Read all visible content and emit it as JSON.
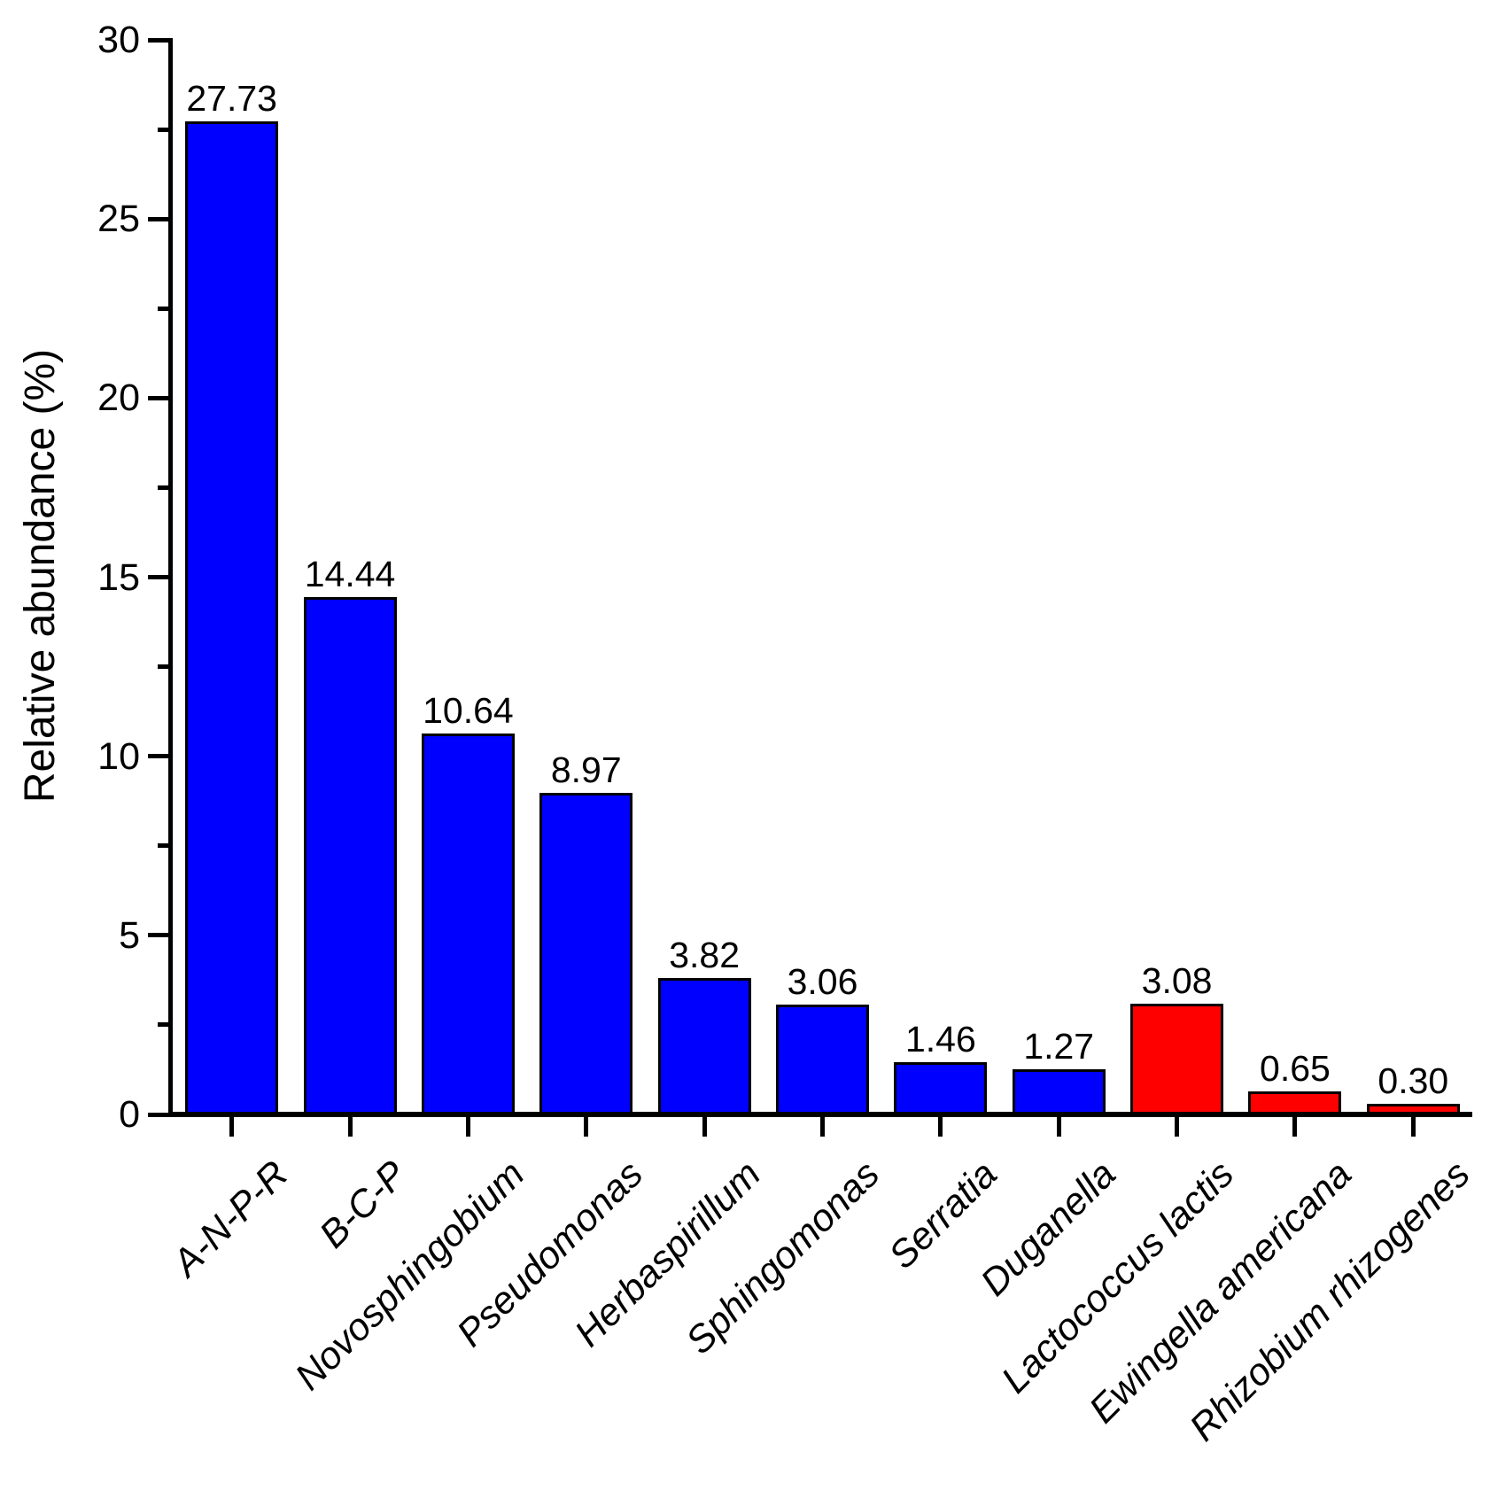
{
  "chart_data": {
    "type": "bar",
    "title": "",
    "xlabel": "",
    "ylabel": "Relative abundance (%)",
    "ylim": [
      0,
      30
    ],
    "yticks": [
      0,
      5,
      10,
      15,
      20,
      25,
      30
    ],
    "ytick_minor_step": 2.5,
    "grid": false,
    "legend": null,
    "categories": [
      "A-N-P-R",
      "B-C-P",
      "Novosphingobium",
      "Pseudomonas",
      "Herbaspirillum",
      "Sphingomonas",
      "Serratia",
      "Duganella",
      "Lactococcus lactis",
      "Ewingella americana",
      "Rhizobium rhizogenes"
    ],
    "values": [
      27.73,
      14.44,
      10.64,
      8.97,
      3.82,
      3.06,
      1.46,
      1.27,
      3.08,
      0.65,
      0.3
    ],
    "value_labels": [
      "27.73",
      "14.44",
      "10.64",
      "8.97",
      "3.82",
      "3.06",
      "1.46",
      "1.27",
      "3.08",
      "0.65",
      "0.30"
    ],
    "bar_colors": [
      "#0000FF",
      "#0000FF",
      "#0000FF",
      "#0000FF",
      "#0000FF",
      "#0000FF",
      "#0000FF",
      "#0000FF",
      "#FF0000",
      "#FF0000",
      "#FF0000"
    ],
    "colors": {
      "bar_blue": "#0000FF",
      "bar_red": "#FF0000",
      "bar_border": "#000000",
      "axis": "#000000",
      "background": "#FFFFFF"
    }
  }
}
